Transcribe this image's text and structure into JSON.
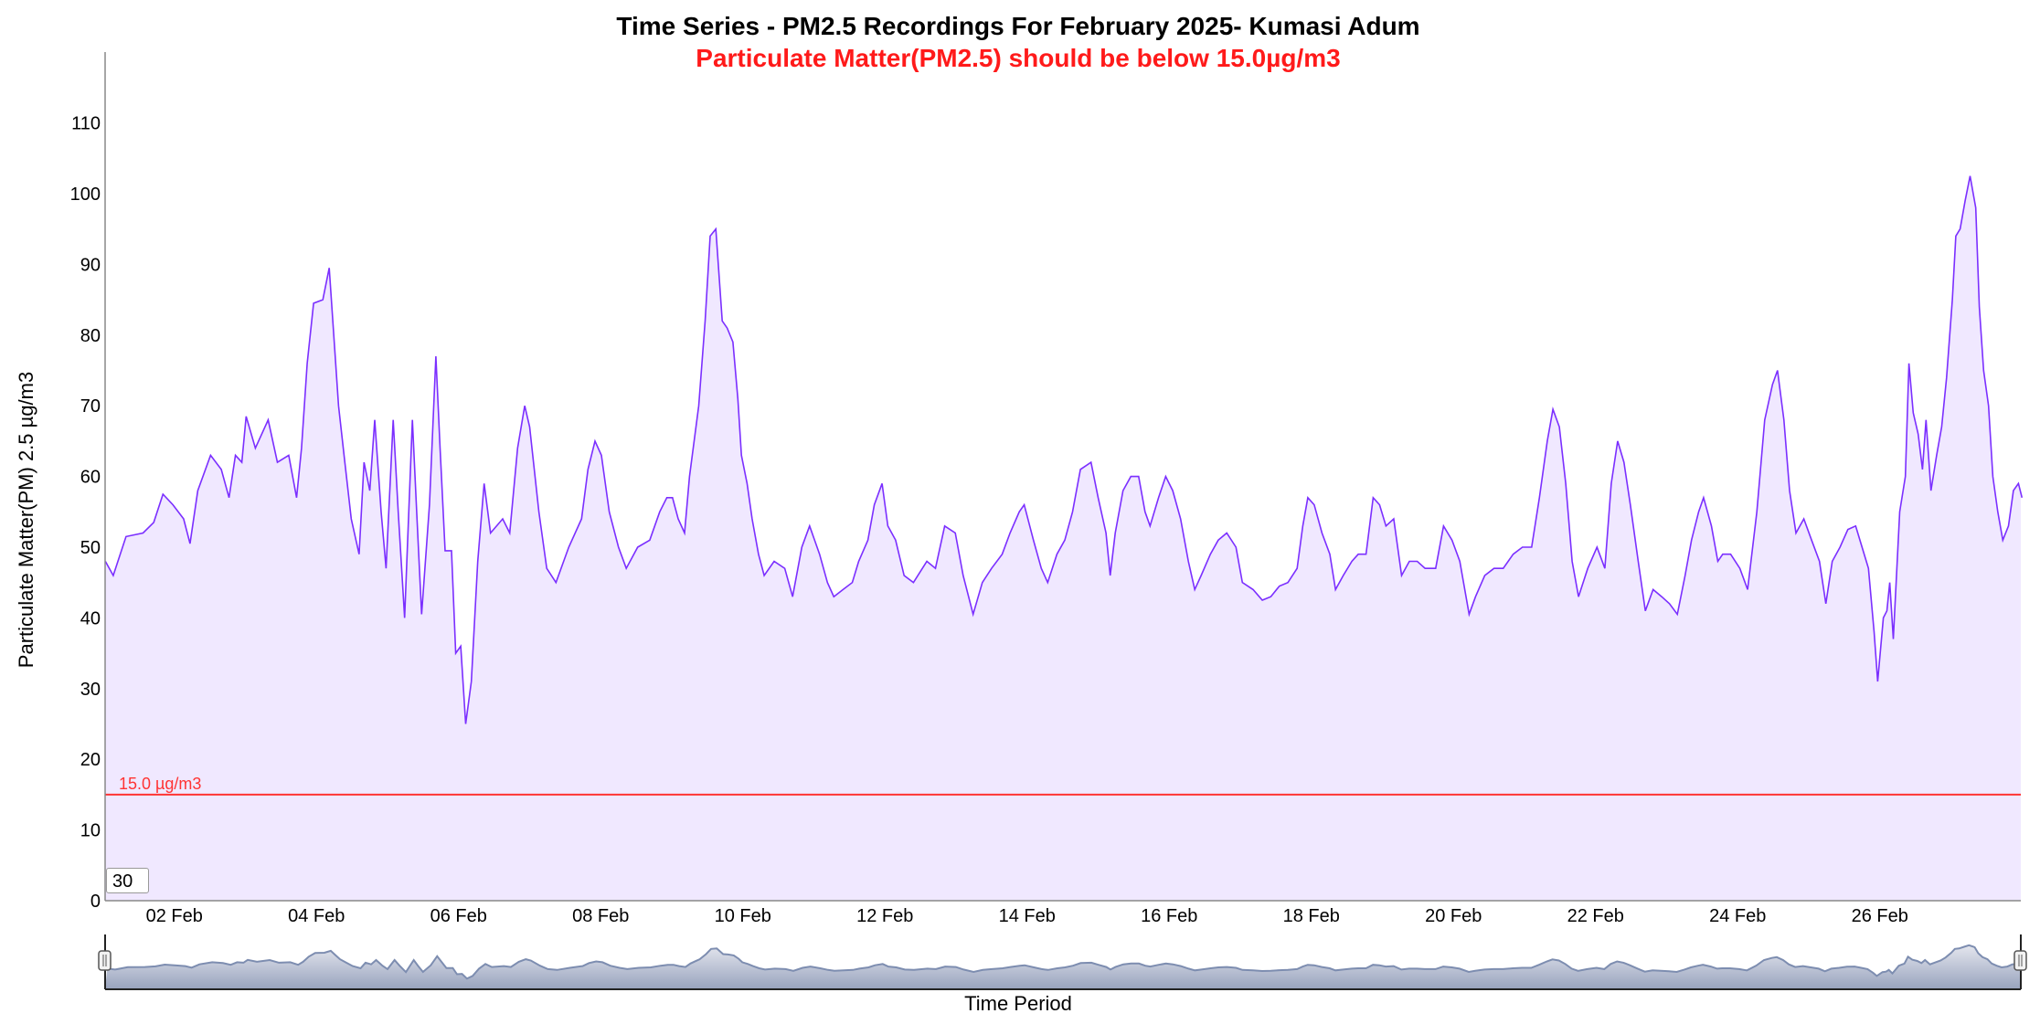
{
  "chart_data": {
    "type": "area",
    "title": "Time Series - PM2.5 Recordings For February 2025- Kumasi Adum",
    "subtitle": "Particulate Matter(PM2.5) should be below 15.0µg/m3",
    "xlabel": "Time Period",
    "ylabel": "Particulate Matter(PM) 2.5 µg/m3",
    "x_unit": "days since 01 Feb 2025 00:00",
    "xlim": [
      0,
      27
    ],
    "ylim": [
      0,
      120
    ],
    "yticks": [
      "0",
      "10",
      "20",
      "30",
      "40",
      "50",
      "60",
      "70",
      "80",
      "90",
      "100",
      "110"
    ],
    "xticks": [
      {
        "day": 1,
        "label": "02 Feb"
      },
      {
        "day": 3,
        "label": "04 Feb"
      },
      {
        "day": 5,
        "label": "06 Feb"
      },
      {
        "day": 7,
        "label": "08 Feb"
      },
      {
        "day": 9,
        "label": "10 Feb"
      },
      {
        "day": 11,
        "label": "12 Feb"
      },
      {
        "day": 13,
        "label": "14 Feb"
      },
      {
        "day": 15,
        "label": "16 Feb"
      },
      {
        "day": 17,
        "label": "18 Feb"
      },
      {
        "day": 19,
        "label": "20 Feb"
      },
      {
        "day": 21,
        "label": "22 Feb"
      },
      {
        "day": 23,
        "label": "24 Feb"
      },
      {
        "day": 25,
        "label": "26 Feb"
      }
    ],
    "threshold": {
      "value": 15.0,
      "label": "15.0 µg/m3",
      "color": "#ff3333"
    },
    "line_color": "#7b2fff",
    "fill_color": "#f0e8ff",
    "navigator_color": "#7d8db0",
    "series": [
      {
        "name": "PM2.5",
        "x": [
          0.03,
          0.14,
          0.32,
          0.56,
          0.71,
          0.84,
          0.98,
          1.13,
          1.22,
          1.33,
          1.51,
          1.66,
          1.77,
          1.86,
          1.95,
          2.01,
          2.14,
          2.32,
          2.45,
          2.61,
          2.72,
          2.79,
          2.87,
          2.96,
          3.09,
          3.18,
          3.25,
          3.31,
          3.4,
          3.49,
          3.6,
          3.67,
          3.75,
          3.82,
          3.91,
          3.98,
          4.08,
          4.15,
          4.24,
          4.35,
          4.41,
          4.48,
          4.59,
          4.68,
          4.74,
          4.81,
          4.9,
          4.96,
          5.03,
          5.1,
          5.18,
          5.27,
          5.36,
          5.45,
          5.62,
          5.72,
          5.83,
          5.93,
          6.0,
          6.13,
          6.24,
          6.37,
          6.55,
          6.73,
          6.82,
          6.92,
          7.01,
          7.12,
          7.25,
          7.36,
          7.52,
          7.69,
          7.83,
          7.93,
          8.01,
          8.09,
          8.18,
          8.25,
          8.38,
          8.47,
          8.54,
          8.62,
          8.71,
          8.78,
          8.86,
          8.93,
          8.98,
          9.06,
          9.13,
          9.22,
          9.3,
          9.44,
          9.59,
          9.7,
          9.83,
          9.94,
          10.08,
          10.19,
          10.28,
          10.41,
          10.54,
          10.63,
          10.76,
          10.85,
          10.96,
          11.04,
          11.15,
          11.27,
          11.4,
          11.59,
          11.71,
          11.84,
          11.99,
          12.1,
          12.24,
          12.37,
          12.5,
          12.65,
          12.76,
          12.89,
          12.96,
          13.09,
          13.2,
          13.29,
          13.42,
          13.53,
          13.64,
          13.75,
          13.9,
          14.0,
          14.11,
          14.17,
          14.24,
          14.35,
          14.46,
          14.57,
          14.66,
          14.73,
          14.85,
          14.95,
          15.05,
          15.16,
          15.27,
          15.36,
          15.45,
          15.58,
          15.69,
          15.81,
          15.94,
          16.03,
          16.18,
          16.31,
          16.43,
          16.55,
          16.67,
          16.8,
          16.88,
          16.95,
          17.04,
          17.15,
          17.26,
          17.34,
          17.45,
          17.57,
          17.66,
          17.77,
          17.87,
          17.96,
          18.05,
          18.16,
          18.27,
          18.38,
          18.49,
          18.6,
          18.75,
          18.86,
          18.98,
          19.09,
          19.22,
          19.31,
          19.44,
          19.57,
          19.7,
          19.84,
          19.97,
          20.1,
          20.21,
          20.32,
          20.4,
          20.49,
          20.58,
          20.67,
          20.76,
          20.89,
          21.02,
          21.13,
          21.22,
          21.31,
          21.4,
          21.49,
          21.6,
          21.7,
          21.81,
          21.93,
          22.04,
          22.15,
          22.26,
          22.35,
          22.45,
          22.52,
          22.63,
          22.72,
          22.79,
          22.9,
          23.03,
          23.14,
          23.27,
          23.38,
          23.49,
          23.56,
          23.65,
          23.73,
          23.82,
          23.93,
          24.04,
          24.15,
          24.24,
          24.33,
          24.44,
          24.55,
          24.66,
          24.75,
          24.84,
          24.92,
          24.97,
          25.05,
          25.1,
          25.14,
          25.19,
          25.28,
          25.36,
          25.41,
          25.47,
          25.54,
          25.6,
          25.65,
          25.72,
          25.8,
          25.87,
          25.94,
          26.02,
          26.07,
          26.13,
          26.2,
          26.27,
          26.35,
          26.4,
          26.46,
          26.53,
          26.59,
          26.66,
          26.73,
          26.81,
          26.88,
          26.95,
          27.0
        ],
        "y": [
          48,
          46,
          51.5,
          52,
          53.5,
          57.5,
          56,
          54,
          50.5,
          58,
          63,
          61,
          57,
          63,
          62,
          68.5,
          64,
          68,
          62,
          63,
          57,
          64,
          76,
          84.5,
          85,
          89.5,
          79,
          70,
          62,
          54,
          49,
          62,
          58,
          68,
          55,
          47,
          68,
          55,
          40,
          68,
          55,
          40.5,
          56,
          77,
          64,
          49.5,
          49.5,
          35,
          36,
          25,
          31,
          48,
          59,
          52,
          54,
          52,
          64,
          70,
          67,
          55,
          47,
          45,
          50,
          54,
          61,
          65,
          63,
          55,
          50,
          47,
          50,
          51,
          55,
          57,
          57,
          54,
          52,
          60,
          70,
          82,
          94,
          95,
          82,
          81,
          79,
          71,
          63,
          59,
          54,
          49,
          46,
          48,
          47,
          43,
          50,
          53,
          49,
          45,
          43,
          44,
          45,
          48,
          51,
          56,
          59,
          53,
          51,
          46,
          45,
          48,
          47,
          53,
          52,
          46,
          40.5,
          45,
          47,
          49,
          52,
          55,
          56,
          51,
          47,
          45,
          49,
          51,
          55,
          61,
          62,
          57,
          52,
          46,
          52,
          58,
          60,
          60,
          55,
          53,
          57,
          60,
          58,
          54,
          48,
          44,
          46,
          49,
          51,
          52,
          50,
          45,
          44,
          42.5,
          43,
          44.5,
          45,
          47,
          53,
          57,
          56,
          52,
          49,
          44,
          46,
          48,
          49,
          49,
          57,
          56,
          53,
          54,
          46,
          48,
          48,
          47,
          47,
          53,
          51,
          48,
          40.5,
          43,
          46,
          47,
          47,
          49,
          50,
          50,
          57,
          65,
          69.5,
          67,
          59,
          48,
          43,
          47,
          50,
          47,
          59,
          65,
          62,
          56,
          48,
          41,
          44,
          43,
          42,
          40.5,
          46,
          51,
          55,
          57,
          53,
          48,
          49,
          49,
          47,
          44,
          55,
          68,
          73,
          75,
          68,
          58,
          52,
          54,
          51,
          48,
          42,
          48,
          50,
          52.5,
          53,
          50,
          47,
          38,
          31,
          40,
          41,
          45,
          37,
          55,
          60,
          76,
          69,
          66,
          61,
          68,
          58,
          63,
          67,
          74,
          85,
          94,
          95,
          99,
          102.5,
          98,
          84,
          75,
          70,
          60,
          55,
          51,
          53,
          58,
          59,
          57
        ]
      }
    ]
  },
  "controls": {
    "range_input_value": "30"
  }
}
